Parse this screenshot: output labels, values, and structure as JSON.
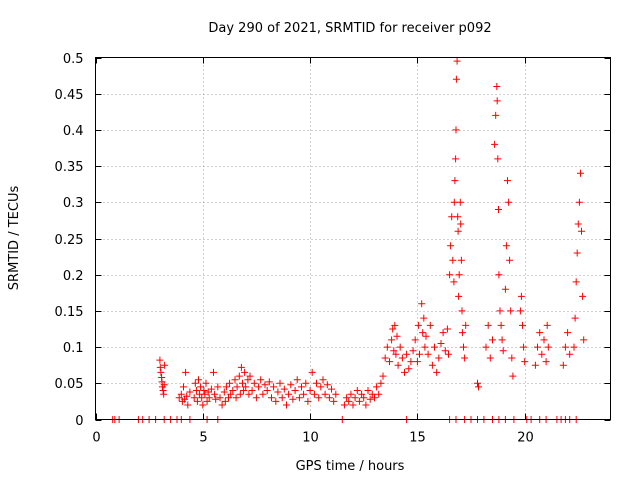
{
  "chart_data": {
    "type": "scatter",
    "title": "Day 290 of 2021, SRMTID for receiver p092",
    "xlabel": "GPS time / hours",
    "ylabel": "SRMTID / TECUs",
    "xlim": [
      0,
      24
    ],
    "ylim": [
      0,
      0.5
    ],
    "xticks": [
      0,
      5,
      10,
      15,
      20
    ],
    "yticks": [
      0,
      0.05,
      0.1,
      0.15,
      0.2,
      0.25,
      0.3,
      0.35,
      0.4,
      0.45,
      0.5
    ],
    "grid": true,
    "marker": "+",
    "series_color": "#ff0000",
    "series": [
      {
        "name": "SRMTID",
        "points": [
          [
            0.8,
            0
          ],
          [
            0.9,
            0
          ],
          [
            1.1,
            0
          ],
          [
            2.0,
            0
          ],
          [
            2.2,
            0
          ],
          [
            2.5,
            0
          ],
          [
            2.8,
            0
          ],
          [
            3.2,
            0
          ],
          [
            3.5,
            0
          ],
          [
            3.8,
            0
          ],
          [
            4.0,
            0
          ],
          [
            4.4,
            0
          ],
          [
            5.2,
            0
          ],
          [
            5.7,
            0
          ],
          [
            11.5,
            0
          ],
          [
            14.5,
            0
          ],
          [
            16.5,
            0
          ],
          [
            16.8,
            0
          ],
          [
            17.2,
            0
          ],
          [
            17.5,
            0
          ],
          [
            17.8,
            0
          ],
          [
            18.1,
            0
          ],
          [
            18.5,
            0
          ],
          [
            18.8,
            0
          ],
          [
            19.1,
            0
          ],
          [
            19.5,
            0
          ],
          [
            20.1,
            0
          ],
          [
            20.3,
            0
          ],
          [
            20.7,
            0
          ],
          [
            21.0,
            0
          ],
          [
            21.5,
            0
          ],
          [
            21.7,
            0
          ],
          [
            21.9,
            0
          ],
          [
            22.1,
            0
          ],
          [
            22.4,
            0
          ],
          [
            3.0,
            0.082
          ],
          [
            3.02,
            0.072
          ],
          [
            3.05,
            0.065
          ],
          [
            3.08,
            0.058
          ],
          [
            3.1,
            0.052
          ],
          [
            3.12,
            0.045
          ],
          [
            3.15,
            0.04
          ],
          [
            3.18,
            0.035
          ],
          [
            3.2,
            0.048
          ],
          [
            3.22,
            0.075
          ],
          [
            3.9,
            0.03
          ],
          [
            4.0,
            0.035
          ],
          [
            4.05,
            0.025
          ],
          [
            4.1,
            0.045
          ],
          [
            4.15,
            0.028
          ],
          [
            4.2,
            0.065
          ],
          [
            4.25,
            0.032
          ],
          [
            4.3,
            0.02
          ],
          [
            4.4,
            0.038
          ],
          [
            4.6,
            0.03
          ],
          [
            4.65,
            0.05
          ],
          [
            4.7,
            0.04
          ],
          [
            4.75,
            0.025
          ],
          [
            4.8,
            0.055
          ],
          [
            4.85,
            0.035
          ],
          [
            4.9,
            0.045
          ],
          [
            4.95,
            0.03
          ],
          [
            5.0,
            0.02
          ],
          [
            5.05,
            0.04
          ],
          [
            5.1,
            0.035
          ],
          [
            5.15,
            0.05
          ],
          [
            5.2,
            0.025
          ],
          [
            5.25,
            0.038
          ],
          [
            5.3,
            0.03
          ],
          [
            5.4,
            0.042
          ],
          [
            5.5,
            0.065
          ],
          [
            5.55,
            0.035
          ],
          [
            5.6,
            0.028
          ],
          [
            5.7,
            0.045
          ],
          [
            5.8,
            0.03
          ],
          [
            5.9,
            0.02
          ],
          [
            6.0,
            0.038
          ],
          [
            6.05,
            0.025
          ],
          [
            6.1,
            0.045
          ],
          [
            6.2,
            0.03
          ],
          [
            6.25,
            0.05
          ],
          [
            6.3,
            0.035
          ],
          [
            6.4,
            0.04
          ],
          [
            6.5,
            0.055
          ],
          [
            6.55,
            0.03
          ],
          [
            6.6,
            0.045
          ],
          [
            6.7,
            0.06
          ],
          [
            6.75,
            0.035
          ],
          [
            6.8,
            0.072
          ],
          [
            6.85,
            0.05
          ],
          [
            6.9,
            0.04
          ],
          [
            6.95,
            0.065
          ],
          [
            7.0,
            0.045
          ],
          [
            7.1,
            0.055
          ],
          [
            7.15,
            0.035
          ],
          [
            7.2,
            0.06
          ],
          [
            7.3,
            0.04
          ],
          [
            7.4,
            0.05
          ],
          [
            7.5,
            0.03
          ],
          [
            7.6,
            0.045
          ],
          [
            7.7,
            0.055
          ],
          [
            7.8,
            0.035
          ],
          [
            7.9,
            0.048
          ],
          [
            8.0,
            0.04
          ],
          [
            8.1,
            0.052
          ],
          [
            8.2,
            0.03
          ],
          [
            8.3,
            0.045
          ],
          [
            8.4,
            0.025
          ],
          [
            8.5,
            0.038
          ],
          [
            8.6,
            0.05
          ],
          [
            8.7,
            0.03
          ],
          [
            8.8,
            0.042
          ],
          [
            8.9,
            0.02
          ],
          [
            9.0,
            0.035
          ],
          [
            9.1,
            0.048
          ],
          [
            9.2,
            0.028
          ],
          [
            9.3,
            0.04
          ],
          [
            9.4,
            0.055
          ],
          [
            9.5,
            0.03
          ],
          [
            9.6,
            0.045
          ],
          [
            9.7,
            0.035
          ],
          [
            9.8,
            0.05
          ],
          [
            9.9,
            0.025
          ],
          [
            10.0,
            0.04
          ],
          [
            10.1,
            0.065
          ],
          [
            10.2,
            0.035
          ],
          [
            10.3,
            0.05
          ],
          [
            10.4,
            0.03
          ],
          [
            10.5,
            0.045
          ],
          [
            10.6,
            0.055
          ],
          [
            10.7,
            0.035
          ],
          [
            10.8,
            0.048
          ],
          [
            10.9,
            0.03
          ],
          [
            11.0,
            0.042
          ],
          [
            11.1,
            0.025
          ],
          [
            11.2,
            0.035
          ],
          [
            11.6,
            0.02
          ],
          [
            11.7,
            0.03
          ],
          [
            11.8,
            0.025
          ],
          [
            11.9,
            0.035
          ],
          [
            12.0,
            0.02
          ],
          [
            12.1,
            0.03
          ],
          [
            12.2,
            0.04
          ],
          [
            12.3,
            0.025
          ],
          [
            12.4,
            0.035
          ],
          [
            12.5,
            0.03
          ],
          [
            12.6,
            0.02
          ],
          [
            12.7,
            0.04
          ],
          [
            12.8,
            0.028
          ],
          [
            12.9,
            0.035
          ],
          [
            13.0,
            0.03
          ],
          [
            13.1,
            0.045
          ],
          [
            13.2,
            0.035
          ],
          [
            13.3,
            0.05
          ],
          [
            13.4,
            0.06
          ],
          [
            13.5,
            0.085
          ],
          [
            13.6,
            0.1
          ],
          [
            13.7,
            0.08
          ],
          [
            13.8,
            0.11
          ],
          [
            13.85,
            0.125
          ],
          [
            13.9,
            0.095
          ],
          [
            13.95,
            0.13
          ],
          [
            14.0,
            0.09
          ],
          [
            14.05,
            0.115
          ],
          [
            14.1,
            0.075
          ],
          [
            14.2,
            0.1
          ],
          [
            14.3,
            0.085
          ],
          [
            14.4,
            0.065
          ],
          [
            14.5,
            0.09
          ],
          [
            14.6,
            0.07
          ],
          [
            14.7,
            0.08
          ],
          [
            14.8,
            0.095
          ],
          [
            14.9,
            0.11
          ],
          [
            15.0,
            0.08
          ],
          [
            15.05,
            0.13
          ],
          [
            15.1,
            0.09
          ],
          [
            15.2,
            0.16
          ],
          [
            15.25,
            0.12
          ],
          [
            15.3,
            0.14
          ],
          [
            15.35,
            0.1
          ],
          [
            15.4,
            0.115
          ],
          [
            15.5,
            0.09
          ],
          [
            15.6,
            0.13
          ],
          [
            15.7,
            0.075
          ],
          [
            15.8,
            0.1
          ],
          [
            15.9,
            0.065
          ],
          [
            16.0,
            0.085
          ],
          [
            16.1,
            0.105
          ],
          [
            16.2,
            0.12
          ],
          [
            16.3,
            0.095
          ],
          [
            16.4,
            0.125
          ],
          [
            16.45,
            0.09
          ],
          [
            16.5,
            0.2
          ],
          [
            16.55,
            0.24
          ],
          [
            16.6,
            0.28
          ],
          [
            16.65,
            0.22
          ],
          [
            16.7,
            0.19
          ],
          [
            16.72,
            0.3
          ],
          [
            16.75,
            0.33
          ],
          [
            16.78,
            0.36
          ],
          [
            16.8,
            0.4
          ],
          [
            16.82,
            0.47
          ],
          [
            16.85,
            0.495
          ],
          [
            16.88,
            0.28
          ],
          [
            16.9,
            0.26
          ],
          [
            16.92,
            0.17
          ],
          [
            16.95,
            0.2
          ],
          [
            17.0,
            0.3
          ],
          [
            17.02,
            0.27
          ],
          [
            17.05,
            0.22
          ],
          [
            17.08,
            0.15
          ],
          [
            17.1,
            0.12
          ],
          [
            17.15,
            0.1
          ],
          [
            17.2,
            0.085
          ],
          [
            17.25,
            0.13
          ],
          [
            17.8,
            0.05
          ],
          [
            17.85,
            0.045
          ],
          [
            18.2,
            0.1
          ],
          [
            18.3,
            0.13
          ],
          [
            18.4,
            0.085
          ],
          [
            18.5,
            0.11
          ],
          [
            18.6,
            0.38
          ],
          [
            18.65,
            0.42
          ],
          [
            18.7,
            0.46
          ],
          [
            18.72,
            0.44
          ],
          [
            18.75,
            0.36
          ],
          [
            18.78,
            0.29
          ],
          [
            18.8,
            0.2
          ],
          [
            18.85,
            0.15
          ],
          [
            18.9,
            0.13
          ],
          [
            18.95,
            0.11
          ],
          [
            19.0,
            0.095
          ],
          [
            19.1,
            0.18
          ],
          [
            19.15,
            0.24
          ],
          [
            19.2,
            0.33
          ],
          [
            19.25,
            0.3
          ],
          [
            19.3,
            0.22
          ],
          [
            19.35,
            0.15
          ],
          [
            19.4,
            0.085
          ],
          [
            19.45,
            0.06
          ],
          [
            19.8,
            0.15
          ],
          [
            19.85,
            0.17
          ],
          [
            19.9,
            0.13
          ],
          [
            19.95,
            0.1
          ],
          [
            20.0,
            0.08
          ],
          [
            20.5,
            0.075
          ],
          [
            20.6,
            0.1
          ],
          [
            20.7,
            0.12
          ],
          [
            20.8,
            0.09
          ],
          [
            20.9,
            0.11
          ],
          [
            21.0,
            0.08
          ],
          [
            21.05,
            0.13
          ],
          [
            21.1,
            0.1
          ],
          [
            21.8,
            0.075
          ],
          [
            21.9,
            0.1
          ],
          [
            22.0,
            0.12
          ],
          [
            22.1,
            0.09
          ],
          [
            22.3,
            0.1
          ],
          [
            22.35,
            0.14
          ],
          [
            22.4,
            0.19
          ],
          [
            22.45,
            0.23
          ],
          [
            22.5,
            0.27
          ],
          [
            22.55,
            0.3
          ],
          [
            22.6,
            0.34
          ],
          [
            22.65,
            0.26
          ],
          [
            22.7,
            0.17
          ],
          [
            22.75,
            0.11
          ]
        ]
      }
    ]
  }
}
